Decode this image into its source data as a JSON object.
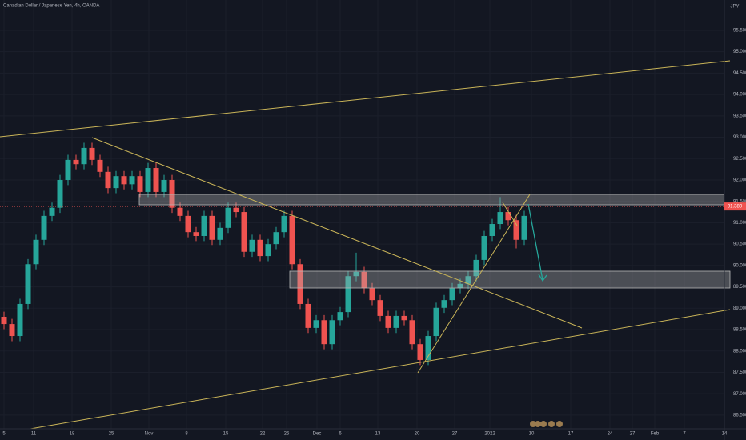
{
  "chart_data": {
    "type": "candlestick",
    "title": "Canadian Dollar / Japanese Yen, 4h, OANDA",
    "currency": "JPY",
    "up_color": "#26a69a",
    "down_color": "#ef5350",
    "grid": true,
    "last_price": {
      "value": 91.38,
      "label": "91.380"
    },
    "xlim": [
      -0.5,
      90
    ],
    "ylim": [
      86.18,
      96.21
    ],
    "xticks": [
      {
        "value": 0,
        "label": "5"
      },
      {
        "value": 3.7,
        "label": "11"
      },
      {
        "value": 8.5,
        "label": "18"
      },
      {
        "value": 13.4,
        "label": "25"
      },
      {
        "value": 18.1,
        "label": "Nov"
      },
      {
        "value": 22.8,
        "label": "8"
      },
      {
        "value": 27.7,
        "label": "15"
      },
      {
        "value": 32.3,
        "label": "22"
      },
      {
        "value": 35.3,
        "label": "25"
      },
      {
        "value": 39.1,
        "label": "Dec"
      },
      {
        "value": 42,
        "label": "6"
      },
      {
        "value": 46.7,
        "label": "13"
      },
      {
        "value": 51.6,
        "label": "20"
      },
      {
        "value": 56.3,
        "label": "27"
      },
      {
        "value": 60.7,
        "label": "2022"
      },
      {
        "value": 65.9,
        "label": "10"
      },
      {
        "value": 70.8,
        "label": "17"
      },
      {
        "value": 75.7,
        "label": "24"
      },
      {
        "value": 78.5,
        "label": "27"
      },
      {
        "value": 81.3,
        "label": "Feb"
      },
      {
        "value": 85,
        "label": "7"
      },
      {
        "value": 90,
        "label": "14"
      }
    ],
    "yticks": [
      {
        "value": 95.5,
        "label": "95.500"
      },
      {
        "value": 95,
        "label": "95.000"
      },
      {
        "value": 94.5,
        "label": "94.500"
      },
      {
        "value": 94,
        "label": "94.000"
      },
      {
        "value": 93.5,
        "label": "93.500"
      },
      {
        "value": 93,
        "label": "93.000"
      },
      {
        "value": 92.5,
        "label": "92.500"
      },
      {
        "value": 92,
        "label": "92.000"
      },
      {
        "value": 91.5,
        "label": "91.500"
      },
      {
        "value": 91,
        "label": "91.000"
      },
      {
        "value": 90.5,
        "label": "90.500"
      },
      {
        "value": 90,
        "label": "90.000"
      },
      {
        "value": 89.5,
        "label": "89.500"
      },
      {
        "value": 89,
        "label": "89.000"
      },
      {
        "value": 88.5,
        "label": "88.500"
      },
      {
        "value": 88,
        "label": "88.000"
      },
      {
        "value": 87.5,
        "label": "87.500"
      },
      {
        "value": 87,
        "label": "87.000"
      },
      {
        "value": 86.5,
        "label": "86.500"
      }
    ],
    "open": [
      88.8,
      88.63,
      88.35,
      89.1,
      90.03,
      90.6,
      91.16,
      91.35,
      92.0,
      92.47,
      92.37,
      92.75,
      92.47,
      92.19,
      91.81,
      92.09,
      91.9,
      92.09,
      91.72,
      92.28,
      91.72,
      92.0,
      91.35,
      91.16,
      90.78,
      90.69,
      91.16,
      90.6,
      90.88,
      91.35,
      91.25,
      90.32,
      90.6,
      90.22,
      90.5,
      90.78,
      91.16,
      90.03,
      89.1,
      88.54,
      88.72,
      88.16,
      88.72,
      88.91,
      89.75,
      89.85,
      89.47,
      89.19,
      88.82,
      88.54,
      88.82,
      88.72,
      88.16,
      87.79,
      88.35,
      89.01,
      89.19,
      89.47,
      89.57,
      89.75,
      90.13,
      90.69,
      90.97,
      91.25,
      91.06,
      90.6
    ],
    "high": [
      88.92,
      88.75,
      89.22,
      90.15,
      90.72,
      91.28,
      91.47,
      92.12,
      92.59,
      92.59,
      92.87,
      92.87,
      92.59,
      92.31,
      92.21,
      92.21,
      92.21,
      92.21,
      92.4,
      92.4,
      92.12,
      92.12,
      91.47,
      91.28,
      90.9,
      91.28,
      91.28,
      91.0,
      91.47,
      91.47,
      91.37,
      90.72,
      90.72,
      90.62,
      90.9,
      91.28,
      91.28,
      90.15,
      89.22,
      88.84,
      88.84,
      88.84,
      89.03,
      89.87,
      90.3,
      89.97,
      89.59,
      89.31,
      88.94,
      88.94,
      88.94,
      88.84,
      88.28,
      88.47,
      89.13,
      89.31,
      89.59,
      89.69,
      89.87,
      90.25,
      90.81,
      91.09,
      91.6,
      91.37,
      91.18,
      91.28
    ],
    "low": [
      88.51,
      88.23,
      88.23,
      88.98,
      89.91,
      90.48,
      91.04,
      91.23,
      91.88,
      92.25,
      92.25,
      92.35,
      92.07,
      91.69,
      91.69,
      91.78,
      91.78,
      91.6,
      91.6,
      91.6,
      91.6,
      91.23,
      91.04,
      90.66,
      90.57,
      90.57,
      90.48,
      90.48,
      90.76,
      91.13,
      90.2,
      90.2,
      90.1,
      90.1,
      90.38,
      90.66,
      89.91,
      88.98,
      88.42,
      88.42,
      88.04,
      88.04,
      88.6,
      88.79,
      89.63,
      89.35,
      89.07,
      88.7,
      88.42,
      88.42,
      88.6,
      88.04,
      87.67,
      87.67,
      88.23,
      88.89,
      89.07,
      89.35,
      89.45,
      89.63,
      90.01,
      90.57,
      90.85,
      90.94,
      90.4,
      90.48
    ],
    "close": [
      88.63,
      88.35,
      89.1,
      90.03,
      90.6,
      91.16,
      91.35,
      92.0,
      92.47,
      92.37,
      92.75,
      92.47,
      92.19,
      91.81,
      92.09,
      91.9,
      92.09,
      91.72,
      92.28,
      91.72,
      92.0,
      91.35,
      91.16,
      90.78,
      90.69,
      91.16,
      90.6,
      90.88,
      91.35,
      91.25,
      90.32,
      90.6,
      90.22,
      90.5,
      90.78,
      91.16,
      90.03,
      89.1,
      88.54,
      88.72,
      88.16,
      88.72,
      88.91,
      89.75,
      89.85,
      89.47,
      89.19,
      88.82,
      88.54,
      88.82,
      88.72,
      88.16,
      87.79,
      88.35,
      89.01,
      89.19,
      89.47,
      89.57,
      89.75,
      90.13,
      90.69,
      90.97,
      91.25,
      91.06,
      90.6,
      91.16
    ]
  }
}
